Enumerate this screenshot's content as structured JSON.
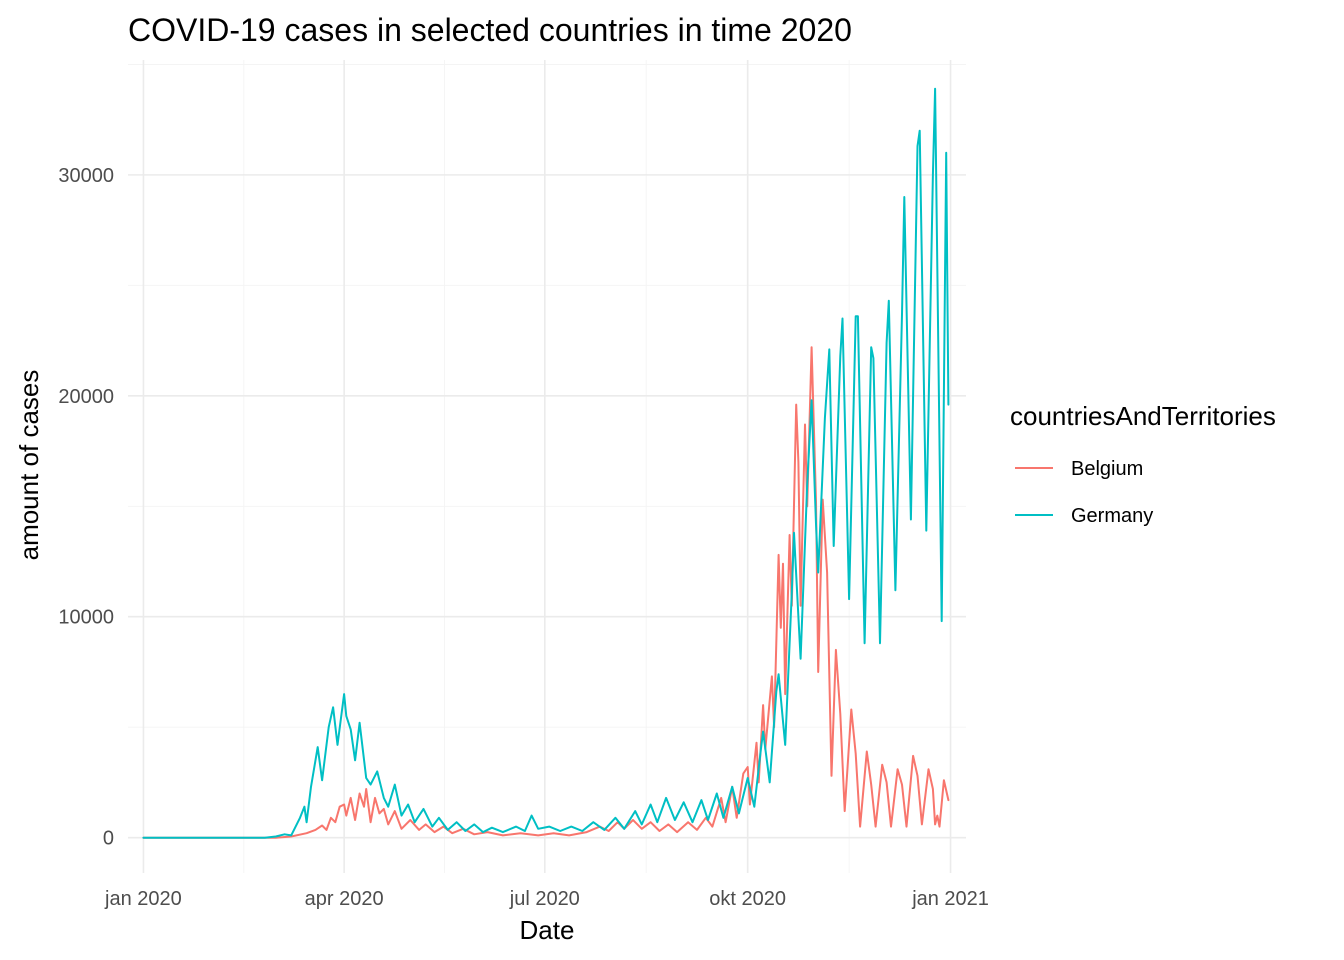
{
  "chart_data": {
    "type": "line",
    "title": "COVID-19 cases in selected countries in time 2020",
    "xlabel": "Date",
    "ylabel": "amount of cases",
    "x_type": "date",
    "xlim": [
      "2019-12-25",
      "2021-01-08"
    ],
    "ylim": [
      -1600,
      35200
    ],
    "x_ticks": [
      {
        "date": "2020-01-01",
        "label": "jan 2020"
      },
      {
        "date": "2020-04-01",
        "label": "apr 2020"
      },
      {
        "date": "2020-07-01",
        "label": "jul 2020"
      },
      {
        "date": "2020-10-01",
        "label": "okt 2020"
      },
      {
        "date": "2021-01-01",
        "label": "jan 2021"
      }
    ],
    "y_ticks": [
      {
        "value": 0,
        "label": "0"
      },
      {
        "value": 10000,
        "label": "10000"
      },
      {
        "value": 20000,
        "label": "20000"
      },
      {
        "value": 30000,
        "label": "30000"
      }
    ],
    "grid": true,
    "legend": {
      "title": "countriesAndTerritories",
      "position": "right"
    },
    "series": [
      {
        "name": "Belgium",
        "color": "#F8766D",
        "points": [
          [
            "2020-01-01",
            0
          ],
          [
            "2020-03-01",
            0
          ],
          [
            "2020-03-08",
            50
          ],
          [
            "2020-03-15",
            200
          ],
          [
            "2020-03-19",
            350
          ],
          [
            "2020-03-22",
            550
          ],
          [
            "2020-03-24",
            350
          ],
          [
            "2020-03-26",
            900
          ],
          [
            "2020-03-28",
            700
          ],
          [
            "2020-03-30",
            1400
          ],
          [
            "2020-04-01",
            1500
          ],
          [
            "2020-04-02",
            1000
          ],
          [
            "2020-04-04",
            1800
          ],
          [
            "2020-04-06",
            800
          ],
          [
            "2020-04-08",
            2000
          ],
          [
            "2020-04-10",
            1400
          ],
          [
            "2020-04-11",
            2200
          ],
          [
            "2020-04-13",
            700
          ],
          [
            "2020-04-15",
            1800
          ],
          [
            "2020-04-17",
            1100
          ],
          [
            "2020-04-19",
            1300
          ],
          [
            "2020-04-21",
            600
          ],
          [
            "2020-04-24",
            1200
          ],
          [
            "2020-04-27",
            400
          ],
          [
            "2020-05-01",
            800
          ],
          [
            "2020-05-05",
            350
          ],
          [
            "2020-05-08",
            600
          ],
          [
            "2020-05-12",
            250
          ],
          [
            "2020-05-16",
            500
          ],
          [
            "2020-05-20",
            200
          ],
          [
            "2020-05-25",
            400
          ],
          [
            "2020-05-30",
            150
          ],
          [
            "2020-06-05",
            250
          ],
          [
            "2020-06-12",
            100
          ],
          [
            "2020-06-20",
            200
          ],
          [
            "2020-06-28",
            100
          ],
          [
            "2020-07-05",
            200
          ],
          [
            "2020-07-12",
            100
          ],
          [
            "2020-07-20",
            250
          ],
          [
            "2020-07-26",
            500
          ],
          [
            "2020-07-30",
            300
          ],
          [
            "2020-08-03",
            700
          ],
          [
            "2020-08-06",
            400
          ],
          [
            "2020-08-10",
            800
          ],
          [
            "2020-08-14",
            400
          ],
          [
            "2020-08-18",
            700
          ],
          [
            "2020-08-22",
            300
          ],
          [
            "2020-08-26",
            600
          ],
          [
            "2020-08-30",
            250
          ],
          [
            "2020-09-04",
            700
          ],
          [
            "2020-09-08",
            350
          ],
          [
            "2020-09-12",
            900
          ],
          [
            "2020-09-15",
            500
          ],
          [
            "2020-09-19",
            1800
          ],
          [
            "2020-09-21",
            700
          ],
          [
            "2020-09-24",
            2300
          ],
          [
            "2020-09-26",
            900
          ],
          [
            "2020-09-29",
            2900
          ],
          [
            "2020-10-01",
            3200
          ],
          [
            "2020-10-02",
            1500
          ],
          [
            "2020-10-05",
            4300
          ],
          [
            "2020-10-06",
            2500
          ],
          [
            "2020-10-08",
            6000
          ],
          [
            "2020-10-09",
            4000
          ],
          [
            "2020-10-12",
            7300
          ],
          [
            "2020-10-13",
            5000
          ],
          [
            "2020-10-15",
            12800
          ],
          [
            "2020-10-16",
            9500
          ],
          [
            "2020-10-17",
            12400
          ],
          [
            "2020-10-18",
            6500
          ],
          [
            "2020-10-20",
            13700
          ],
          [
            "2020-10-21",
            10500
          ],
          [
            "2020-10-23",
            19600
          ],
          [
            "2020-10-24",
            17000
          ],
          [
            "2020-10-25",
            10500
          ],
          [
            "2020-10-27",
            18700
          ],
          [
            "2020-10-28",
            15000
          ],
          [
            "2020-10-30",
            22200
          ],
          [
            "2020-11-01",
            15200
          ],
          [
            "2020-11-02",
            7500
          ],
          [
            "2020-11-04",
            15300
          ],
          [
            "2020-11-06",
            12000
          ],
          [
            "2020-11-08",
            2800
          ],
          [
            "2020-11-10",
            8500
          ],
          [
            "2020-11-12",
            5600
          ],
          [
            "2020-11-14",
            1200
          ],
          [
            "2020-11-17",
            5800
          ],
          [
            "2020-11-19",
            3800
          ],
          [
            "2020-11-21",
            500
          ],
          [
            "2020-11-24",
            3900
          ],
          [
            "2020-11-26",
            2400
          ],
          [
            "2020-11-28",
            500
          ],
          [
            "2020-12-01",
            3300
          ],
          [
            "2020-12-03",
            2500
          ],
          [
            "2020-12-05",
            500
          ],
          [
            "2020-12-08",
            3100
          ],
          [
            "2020-12-10",
            2400
          ],
          [
            "2020-12-12",
            500
          ],
          [
            "2020-12-15",
            3700
          ],
          [
            "2020-12-17",
            2800
          ],
          [
            "2020-12-19",
            600
          ],
          [
            "2020-12-22",
            3100
          ],
          [
            "2020-12-24",
            2200
          ],
          [
            "2020-12-25",
            600
          ],
          [
            "2020-12-26",
            1000
          ],
          [
            "2020-12-27",
            500
          ],
          [
            "2020-12-29",
            2600
          ],
          [
            "2020-12-31",
            1700
          ]
        ]
      },
      {
        "name": "Germany",
        "color": "#00BFC4",
        "points": [
          [
            "2020-01-01",
            0
          ],
          [
            "2020-02-25",
            0
          ],
          [
            "2020-03-01",
            50
          ],
          [
            "2020-03-05",
            150
          ],
          [
            "2020-03-08",
            100
          ],
          [
            "2020-03-12",
            900
          ],
          [
            "2020-03-14",
            1400
          ],
          [
            "2020-03-15",
            700
          ],
          [
            "2020-03-17",
            2300
          ],
          [
            "2020-03-20",
            4100
          ],
          [
            "2020-03-22",
            2600
          ],
          [
            "2020-03-25",
            5000
          ],
          [
            "2020-03-27",
            5900
          ],
          [
            "2020-03-29",
            4200
          ],
          [
            "2020-04-01",
            6500
          ],
          [
            "2020-04-02",
            5500
          ],
          [
            "2020-04-04",
            4900
          ],
          [
            "2020-04-06",
            3500
          ],
          [
            "2020-04-08",
            5200
          ],
          [
            "2020-04-11",
            2700
          ],
          [
            "2020-04-13",
            2400
          ],
          [
            "2020-04-16",
            3000
          ],
          [
            "2020-04-19",
            1800
          ],
          [
            "2020-04-21",
            1400
          ],
          [
            "2020-04-24",
            2400
          ],
          [
            "2020-04-27",
            1000
          ],
          [
            "2020-04-30",
            1500
          ],
          [
            "2020-05-03",
            700
          ],
          [
            "2020-05-07",
            1300
          ],
          [
            "2020-05-11",
            500
          ],
          [
            "2020-05-14",
            900
          ],
          [
            "2020-05-18",
            350
          ],
          [
            "2020-05-22",
            700
          ],
          [
            "2020-05-26",
            300
          ],
          [
            "2020-05-30",
            600
          ],
          [
            "2020-06-03",
            250
          ],
          [
            "2020-06-07",
            450
          ],
          [
            "2020-06-12",
            250
          ],
          [
            "2020-06-18",
            500
          ],
          [
            "2020-06-22",
            300
          ],
          [
            "2020-06-25",
            1000
          ],
          [
            "2020-06-28",
            400
          ],
          [
            "2020-07-03",
            500
          ],
          [
            "2020-07-08",
            300
          ],
          [
            "2020-07-13",
            500
          ],
          [
            "2020-07-18",
            300
          ],
          [
            "2020-07-23",
            700
          ],
          [
            "2020-07-28",
            350
          ],
          [
            "2020-08-02",
            900
          ],
          [
            "2020-08-06",
            400
          ],
          [
            "2020-08-11",
            1200
          ],
          [
            "2020-08-14",
            600
          ],
          [
            "2020-08-18",
            1500
          ],
          [
            "2020-08-21",
            700
          ],
          [
            "2020-08-25",
            1800
          ],
          [
            "2020-08-29",
            800
          ],
          [
            "2020-09-02",
            1600
          ],
          [
            "2020-09-06",
            700
          ],
          [
            "2020-09-10",
            1700
          ],
          [
            "2020-09-13",
            800
          ],
          [
            "2020-09-17",
            2000
          ],
          [
            "2020-09-20",
            900
          ],
          [
            "2020-09-24",
            2300
          ],
          [
            "2020-09-27",
            1100
          ],
          [
            "2020-10-01",
            2700
          ],
          [
            "2020-10-04",
            1400
          ],
          [
            "2020-10-07",
            4000
          ],
          [
            "2020-10-08",
            4800
          ],
          [
            "2020-10-11",
            2500
          ],
          [
            "2020-10-14",
            6600
          ],
          [
            "2020-10-15",
            7400
          ],
          [
            "2020-10-18",
            4200
          ],
          [
            "2020-10-21",
            11100
          ],
          [
            "2020-10-22",
            13800
          ],
          [
            "2020-10-25",
            8100
          ],
          [
            "2020-10-28",
            16000
          ],
          [
            "2020-10-30",
            19800
          ],
          [
            "2020-11-01",
            14200
          ],
          [
            "2020-11-02",
            12000
          ],
          [
            "2020-11-05",
            19000
          ],
          [
            "2020-11-07",
            22100
          ],
          [
            "2020-11-09",
            13200
          ],
          [
            "2020-11-12",
            21800
          ],
          [
            "2020-11-13",
            23500
          ],
          [
            "2020-11-16",
            10800
          ],
          [
            "2020-11-19",
            23600
          ],
          [
            "2020-11-20",
            23600
          ],
          [
            "2020-11-23",
            8800
          ],
          [
            "2020-11-26",
            22200
          ],
          [
            "2020-11-27",
            21700
          ],
          [
            "2020-11-30",
            8800
          ],
          [
            "2020-12-03",
            22400
          ],
          [
            "2020-12-04",
            24300
          ],
          [
            "2020-12-07",
            11200
          ],
          [
            "2020-12-10",
            23700
          ],
          [
            "2020-12-11",
            29000
          ],
          [
            "2020-12-14",
            14400
          ],
          [
            "2020-12-17",
            31300
          ],
          [
            "2020-12-18",
            32000
          ],
          [
            "2020-12-21",
            13900
          ],
          [
            "2020-12-24",
            30000
          ],
          [
            "2020-12-25",
            33900
          ],
          [
            "2020-12-28",
            9800
          ],
          [
            "2020-12-30",
            31000
          ],
          [
            "2020-12-31",
            19600
          ]
        ]
      }
    ]
  }
}
